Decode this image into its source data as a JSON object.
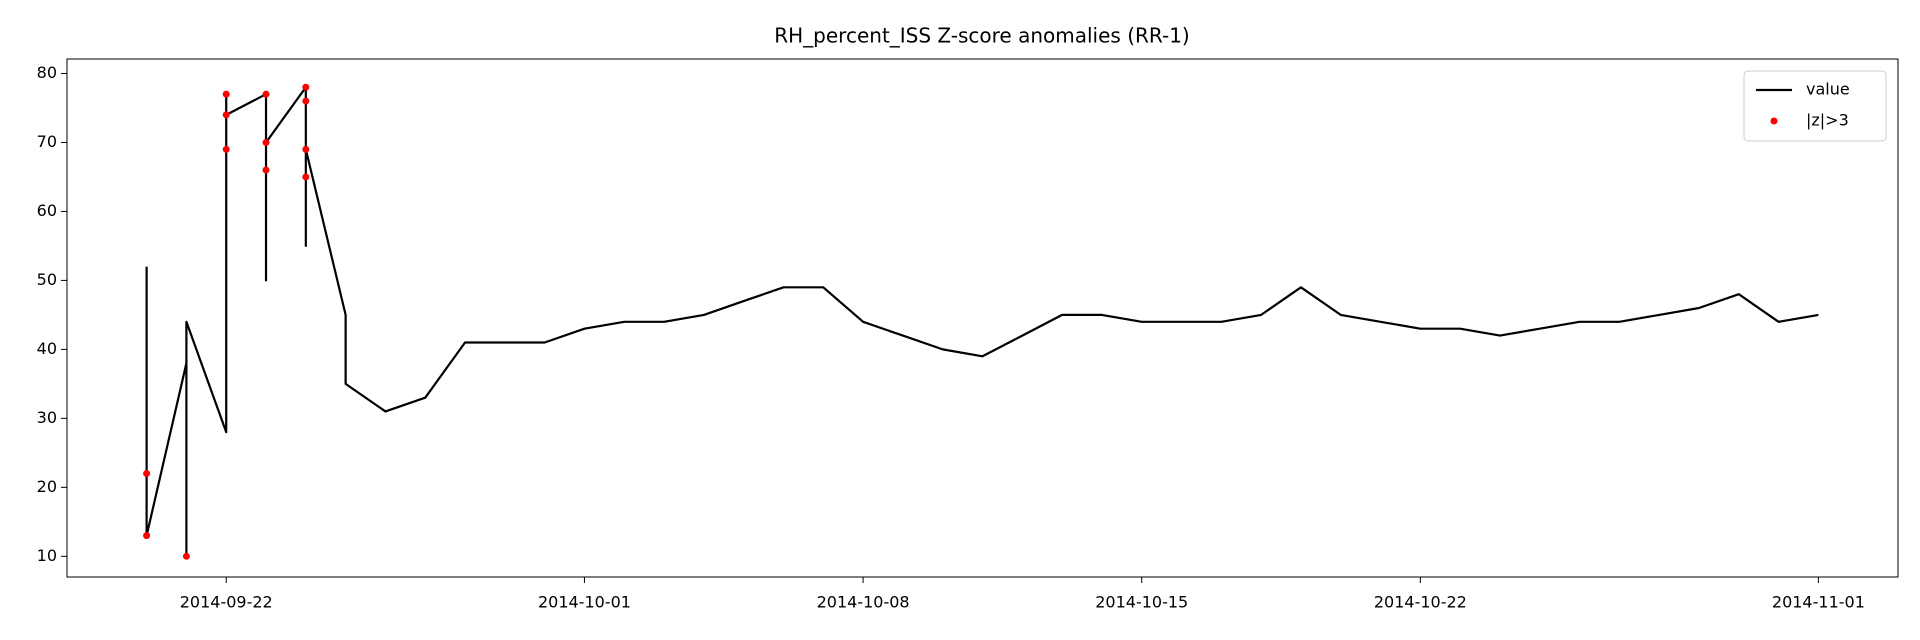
{
  "chart_data": {
    "type": "line",
    "title": "RH_percent_ISS Z-score anomalies (RR-1)",
    "x": [
      "2014-09-20",
      "2014-09-20",
      "2014-09-20",
      "2014-09-20",
      "2014-09-21",
      "2014-09-21",
      "2014-09-21",
      "2014-09-22",
      "2014-09-22",
      "2014-09-22",
      "2014-09-22",
      "2014-09-23",
      "2014-09-23",
      "2014-09-23",
      "2014-09-23",
      "2014-09-24",
      "2014-09-24",
      "2014-09-24",
      "2014-09-24",
      "2014-09-24",
      "2014-09-25",
      "2014-09-25",
      "2014-09-26",
      "2014-09-27",
      "2014-09-28",
      "2014-09-29",
      "2014-09-30",
      "2014-10-01",
      "2014-10-02",
      "2014-10-03",
      "2014-10-04",
      "2014-10-05",
      "2014-10-06",
      "2014-10-07",
      "2014-10-08",
      "2014-10-09",
      "2014-10-10",
      "2014-10-11",
      "2014-10-12",
      "2014-10-13",
      "2014-10-14",
      "2014-10-15",
      "2014-10-16",
      "2014-10-17",
      "2014-10-18",
      "2014-10-19",
      "2014-10-20",
      "2014-10-21",
      "2014-10-22",
      "2014-10-23",
      "2014-10-24",
      "2014-10-25",
      "2014-10-26",
      "2014-10-27",
      "2014-10-28",
      "2014-10-29",
      "2014-10-30",
      "2014-10-31",
      "2014-11-01"
    ],
    "series": [
      {
        "name": "value",
        "color": "#000000",
        "values": [
          52,
          31,
          22,
          13,
          38,
          10,
          44,
          28,
          77,
          69,
          74,
          77,
          50,
          66,
          70,
          78,
          55,
          65,
          76,
          69,
          45,
          35,
          31,
          33,
          41,
          41,
          41,
          43,
          44,
          44,
          45,
          47,
          49,
          49,
          44,
          42,
          40,
          39,
          42,
          45,
          45,
          44,
          44,
          44,
          45,
          49,
          45,
          44,
          43,
          43,
          42,
          43,
          44,
          44,
          45,
          46,
          48,
          44,
          45
        ]
      },
      {
        "name": "|z|>3",
        "type": "scatter",
        "color": "#ff0000",
        "x": [
          "2014-09-20",
          "2014-09-20",
          "2014-09-21",
          "2014-09-22",
          "2014-09-22",
          "2014-09-22",
          "2014-09-23",
          "2014-09-23",
          "2014-09-23",
          "2014-09-24",
          "2014-09-24",
          "2014-09-24",
          "2014-09-24"
        ],
        "values": [
          22,
          13,
          10,
          77,
          69,
          74,
          77,
          66,
          70,
          78,
          65,
          76,
          69
        ]
      }
    ],
    "xlim": [
      "2014-09-18",
      "2014-11-03"
    ],
    "xticks": [
      "2014-09-22",
      "2014-10-01",
      "2014-10-08",
      "2014-10-15",
      "2014-10-22",
      "2014-11-01"
    ],
    "ylim": [
      7,
      82.1
    ],
    "yticks": [
      10,
      20,
      30,
      40,
      50,
      60,
      70,
      80
    ],
    "legend": "upper right"
  }
}
